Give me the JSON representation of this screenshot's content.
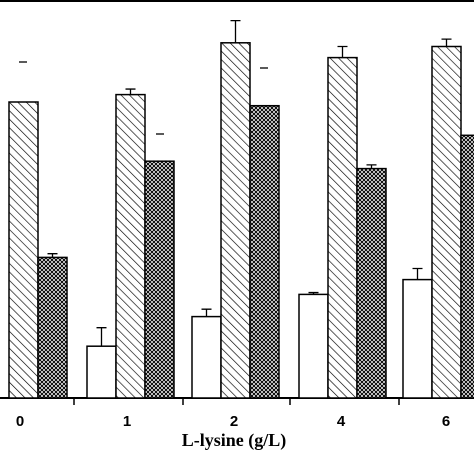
{
  "chart_data": {
    "type": "bar",
    "xlabel": "L-lysine (g/L)",
    "categories": [
      "0",
      "1",
      "2",
      "4",
      "6"
    ],
    "ylim": [
      0,
      100
    ],
    "grid": false,
    "legend": "none",
    "series": [
      {
        "pattern": "open",
        "fill": "#ffffff",
        "values": [
          null,
          14,
          22,
          28,
          32
        ],
        "errors": [
          null,
          5,
          2,
          0.5,
          3
        ]
      },
      {
        "pattern": "diagonal-hatch",
        "fill": "#ffffff",
        "values": [
          80,
          82,
          96,
          92,
          95
        ],
        "errors": [
          null,
          1.5,
          6,
          3,
          2
        ]
      },
      {
        "pattern": "cross-hatch",
        "fill": "#ffffff",
        "values": [
          38,
          64,
          79,
          62,
          71
        ],
        "errors": [
          1,
          null,
          null,
          1,
          null
        ]
      }
    ]
  }
}
